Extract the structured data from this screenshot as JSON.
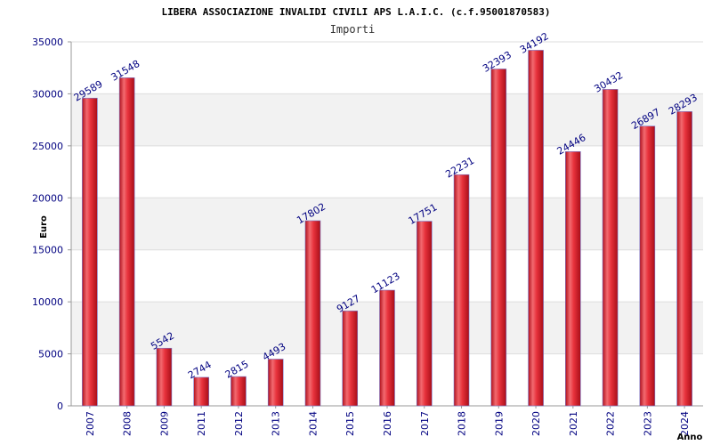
{
  "chart_data": {
    "type": "bar",
    "title": "LIBERA ASSOCIAZIONE INVALIDI CIVILI APS L.A.I.C. (c.f.95001870583)",
    "subtitle": "Importi",
    "xlabel": "Anno",
    "ylabel": "Euro",
    "categories": [
      "2007",
      "2008",
      "2009",
      "2011",
      "2012",
      "2013",
      "2014",
      "2015",
      "2016",
      "2017",
      "2018",
      "2019",
      "2020",
      "2021",
      "2022",
      "2023",
      "2024"
    ],
    "values": [
      29589,
      31548,
      5542,
      2744,
      2815,
      4493,
      17802,
      9127,
      11123,
      17751,
      22231,
      32393,
      34192,
      24446,
      30432,
      26897,
      28293
    ],
    "ylim": [
      0,
      35000
    ],
    "yticks": [
      0,
      5000,
      10000,
      15000,
      20000,
      25000,
      30000,
      35000
    ],
    "grid": true,
    "bar_color": "#e8323c"
  }
}
